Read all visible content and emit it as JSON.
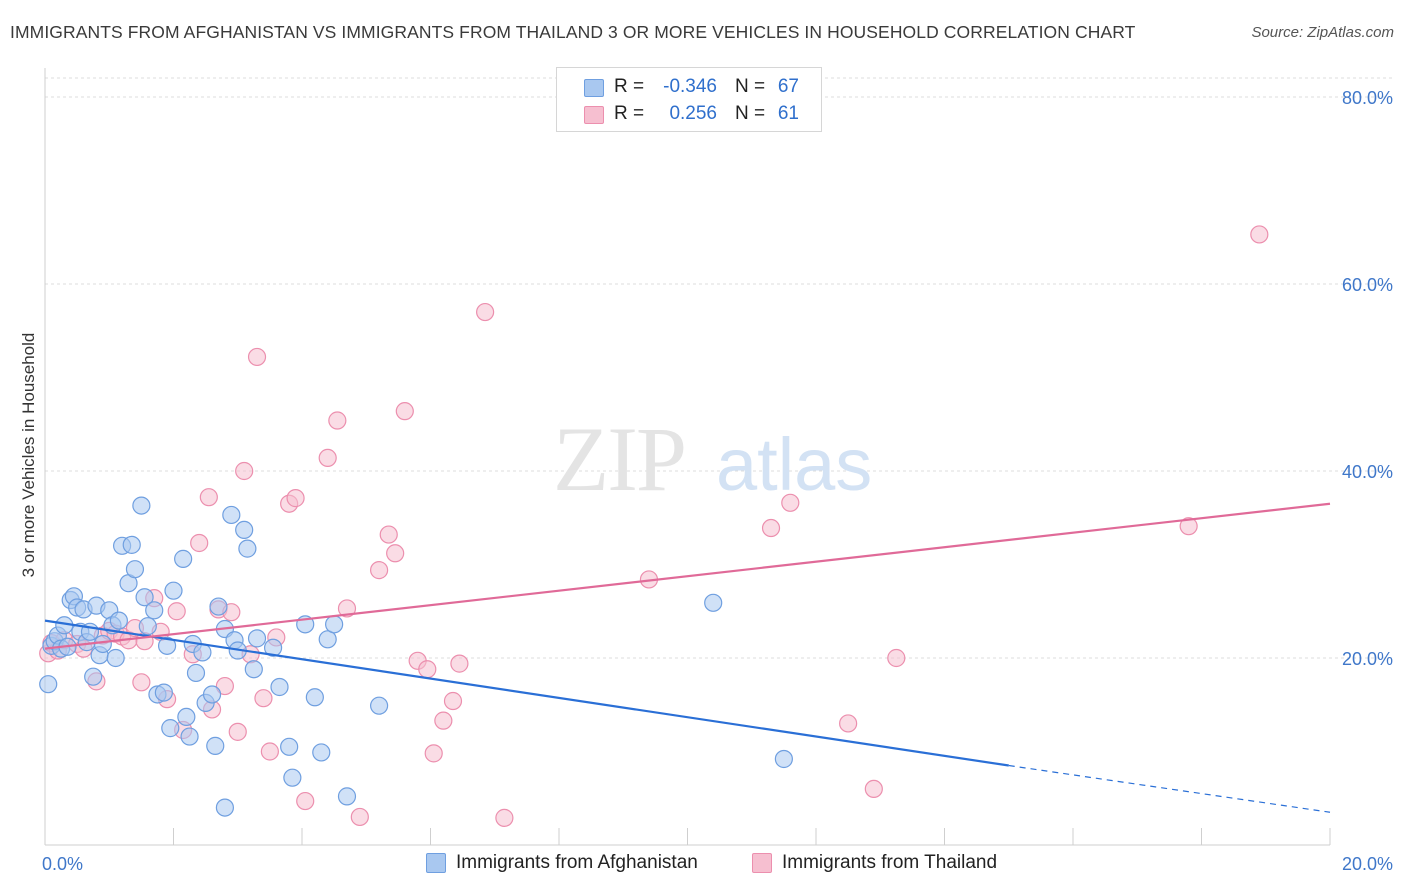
{
  "title": "IMMIGRANTS FROM AFGHANISTAN VS IMMIGRANTS FROM THAILAND 3 OR MORE VEHICLES IN HOUSEHOLD CORRELATION CHART",
  "source": "Source: ZipAtlas.com",
  "watermark": {
    "zip": "ZIP",
    "atlas": "atlas"
  },
  "legend": {
    "rows": [
      {
        "r_label": "R =",
        "r_value": "-0.346",
        "n_label": "N =",
        "n_value": "67"
      },
      {
        "r_label": "R =",
        "r_value": "0.256",
        "n_label": "N =",
        "n_value": "61"
      }
    ]
  },
  "colors": {
    "afghanistan_fill": "#a9c8f0",
    "afghanistan_stroke": "#6f9fe0",
    "afghanistan_line": "#2a6fd6",
    "thailand_fill": "#f6bfd0",
    "thailand_stroke": "#ec8fae",
    "thailand_line": "#e06a98",
    "tick_label": "#3f77c9",
    "grid": "#dcdcdc"
  },
  "chart_data": {
    "type": "scatter",
    "title": "IMMIGRANTS FROM AFGHANISTAN VS IMMIGRANTS FROM THAILAND 3 OR MORE VEHICLES IN HOUSEHOLD CORRELATION CHART",
    "xlabel": "",
    "ylabel": "3 or more Vehicles in Household",
    "xlim": [
      0,
      20
    ],
    "ylim": [
      0,
      80
    ],
    "x_tick_labels": [
      "0.0%",
      "20.0%"
    ],
    "y_tick_labels": [
      "20.0%",
      "40.0%",
      "60.0%",
      "80.0%"
    ],
    "y_ticks": [
      20,
      40,
      60,
      80
    ],
    "grid": true,
    "legend_position": "top-center",
    "series": [
      {
        "name": "Immigrants from Afghanistan",
        "r": -0.346,
        "n": 67,
        "trend": {
          "x": [
            0,
            15
          ],
          "y": [
            24.0,
            8.5
          ],
          "dashed_to": [
            20,
            3.5
          ]
        },
        "points": [
          [
            0.05,
            17.2
          ],
          [
            0.1,
            21.3
          ],
          [
            0.15,
            21.8
          ],
          [
            0.2,
            22.4
          ],
          [
            0.25,
            21.0
          ],
          [
            0.3,
            23.5
          ],
          [
            0.35,
            21.2
          ],
          [
            0.4,
            26.2
          ],
          [
            0.45,
            26.6
          ],
          [
            0.5,
            25.4
          ],
          [
            0.55,
            22.8
          ],
          [
            0.6,
            25.2
          ],
          [
            0.65,
            21.7
          ],
          [
            0.7,
            22.8
          ],
          [
            0.75,
            18.0
          ],
          [
            0.8,
            25.6
          ],
          [
            0.85,
            20.3
          ],
          [
            0.9,
            21.5
          ],
          [
            1.0,
            25.1
          ],
          [
            1.05,
            23.5
          ],
          [
            1.1,
            20.0
          ],
          [
            1.15,
            24.0
          ],
          [
            1.2,
            32.0
          ],
          [
            1.3,
            28.0
          ],
          [
            1.35,
            32.1
          ],
          [
            1.4,
            29.5
          ],
          [
            1.5,
            36.3
          ],
          [
            1.55,
            26.5
          ],
          [
            1.6,
            23.4
          ],
          [
            1.7,
            25.1
          ],
          [
            1.75,
            16.1
          ],
          [
            1.85,
            16.3
          ],
          [
            1.9,
            21.3
          ],
          [
            1.95,
            12.5
          ],
          [
            2.0,
            27.2
          ],
          [
            2.15,
            30.6
          ],
          [
            2.2,
            13.7
          ],
          [
            2.25,
            11.6
          ],
          [
            2.3,
            21.5
          ],
          [
            2.35,
            18.4
          ],
          [
            2.45,
            20.6
          ],
          [
            2.5,
            15.2
          ],
          [
            2.6,
            16.1
          ],
          [
            2.65,
            10.6
          ],
          [
            2.7,
            25.5
          ],
          [
            2.8,
            23.1
          ],
          [
            2.9,
            35.3
          ],
          [
            2.95,
            21.9
          ],
          [
            3.0,
            20.8
          ],
          [
            3.1,
            33.7
          ],
          [
            3.15,
            31.7
          ],
          [
            3.25,
            18.8
          ],
          [
            3.3,
            22.1
          ],
          [
            3.55,
            21.1
          ],
          [
            3.65,
            16.9
          ],
          [
            3.8,
            10.5
          ],
          [
            3.85,
            7.2
          ],
          [
            4.05,
            23.6
          ],
          [
            4.2,
            15.8
          ],
          [
            4.3,
            9.9
          ],
          [
            4.4,
            22.0
          ],
          [
            4.5,
            23.6
          ],
          [
            4.7,
            5.2
          ],
          [
            5.2,
            14.9
          ],
          [
            10.4,
            25.9
          ],
          [
            11.5,
            9.2
          ],
          [
            2.8,
            4.0
          ]
        ]
      },
      {
        "name": "Immigrants from Thailand",
        "r": 0.256,
        "n": 61,
        "trend": {
          "x": [
            0,
            20
          ],
          "y": [
            21.0,
            36.5
          ]
        },
        "points": [
          [
            0.05,
            20.5
          ],
          [
            0.1,
            21.6
          ],
          [
            0.2,
            20.8
          ],
          [
            0.3,
            21.9
          ],
          [
            0.5,
            21.5
          ],
          [
            0.6,
            21.0
          ],
          [
            0.8,
            17.5
          ],
          [
            0.9,
            22.4
          ],
          [
            1.0,
            22.9
          ],
          [
            1.1,
            22.6
          ],
          [
            1.2,
            22.3
          ],
          [
            1.3,
            21.9
          ],
          [
            1.4,
            23.2
          ],
          [
            1.5,
            17.4
          ],
          [
            1.7,
            26.4
          ],
          [
            1.8,
            22.8
          ],
          [
            1.9,
            15.6
          ],
          [
            2.05,
            25.0
          ],
          [
            2.15,
            12.3
          ],
          [
            2.3,
            20.4
          ],
          [
            2.4,
            32.3
          ],
          [
            2.55,
            37.2
          ],
          [
            2.6,
            14.5
          ],
          [
            2.7,
            25.2
          ],
          [
            2.8,
            17.0
          ],
          [
            2.9,
            24.9
          ],
          [
            3.0,
            12.1
          ],
          [
            3.1,
            40.0
          ],
          [
            3.2,
            20.4
          ],
          [
            3.3,
            52.2
          ],
          [
            3.4,
            15.7
          ],
          [
            3.5,
            10.0
          ],
          [
            3.6,
            22.2
          ],
          [
            3.8,
            36.5
          ],
          [
            3.9,
            37.1
          ],
          [
            4.05,
            4.7
          ],
          [
            4.4,
            41.4
          ],
          [
            4.55,
            45.4
          ],
          [
            4.7,
            25.3
          ],
          [
            4.9,
            3.0
          ],
          [
            5.2,
            29.4
          ],
          [
            5.35,
            33.2
          ],
          [
            5.45,
            31.2
          ],
          [
            5.6,
            46.4
          ],
          [
            5.8,
            19.7
          ],
          [
            5.95,
            18.8
          ],
          [
            6.05,
            9.8
          ],
          [
            6.2,
            13.3
          ],
          [
            6.35,
            15.4
          ],
          [
            6.45,
            19.4
          ],
          [
            6.85,
            57.0
          ],
          [
            7.15,
            2.9
          ],
          [
            9.4,
            28.4
          ],
          [
            11.3,
            33.9
          ],
          [
            11.6,
            36.6
          ],
          [
            12.5,
            13.0
          ],
          [
            12.9,
            6.0
          ],
          [
            13.25,
            20.0
          ],
          [
            17.8,
            34.1
          ],
          [
            18.9,
            65.3
          ],
          [
            1.55,
            21.8
          ]
        ]
      }
    ]
  }
}
